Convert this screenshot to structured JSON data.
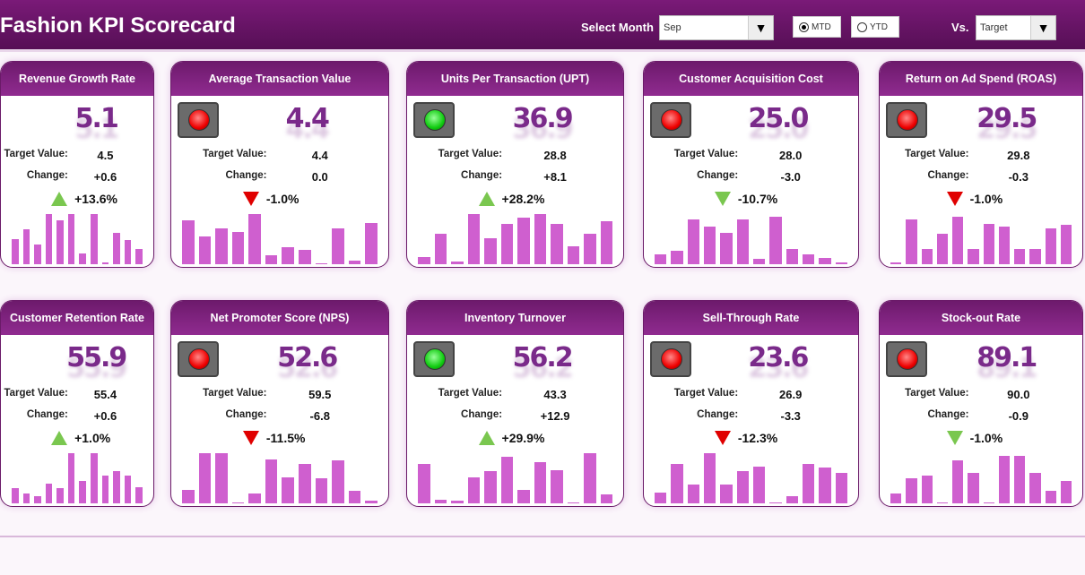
{
  "header": {
    "title": "Fashion KPI Scorecard",
    "select_month_label": "Select Month",
    "month": "Sep",
    "mtd": "MTD",
    "ytd": "YTD",
    "mode_selected": "MTD",
    "vs_label": "Vs.",
    "vs_value": "Target"
  },
  "labels": {
    "target": "Target Value:",
    "change": "Change:"
  },
  "colors": {
    "accent": "#7a1a78",
    "bar": "#cf5fcf",
    "red": "#e00000",
    "green": "#7ac74f"
  },
  "cards": [
    {
      "title": "Revenue Growth Rate",
      "value": "5.1",
      "target": "4.5",
      "change": "+0.6",
      "pct": "+13.6%",
      "dir": "up",
      "arrow": "#7ac74f",
      "light": "",
      "spark": [
        0.5,
        0.7,
        0.4,
        1.0,
        0.88,
        1.0,
        0.22,
        1.0,
        0.03,
        0.62,
        0.48,
        0.3
      ]
    },
    {
      "title": "Average Transaction Value",
      "value": "4.4",
      "target": "4.4",
      "change": "0.0",
      "pct": "-1.0%",
      "dir": "down",
      "arrow": "#e00000",
      "light": "red",
      "spark": [
        0.88,
        0.55,
        0.72,
        0.64,
        1.0,
        0.18,
        0.34,
        0.28,
        0.02,
        0.72,
        0.08,
        0.82
      ]
    },
    {
      "title": "Units Per Transaction (UPT)",
      "value": "36.9",
      "target": "28.8",
      "change": "+8.1",
      "pct": "+28.2%",
      "dir": "up",
      "arrow": "#7ac74f",
      "light": "green",
      "spark": [
        0.14,
        0.6,
        0.06,
        1.0,
        0.52,
        0.8,
        0.92,
        1.0,
        0.8,
        0.36,
        0.6,
        0.86
      ]
    },
    {
      "title": "Customer Acquisition Cost",
      "value": "25.0",
      "target": "28.0",
      "change": "-3.0",
      "pct": "-10.7%",
      "dir": "down",
      "arrow": "#7ac74f",
      "light": "red",
      "spark": [
        0.2,
        0.26,
        0.9,
        0.75,
        0.62,
        0.9,
        0.1,
        0.95,
        0.3,
        0.2,
        0.12,
        0.04
      ]
    },
    {
      "title": "Return on Ad Spend (ROAS)",
      "value": "29.5",
      "target": "29.8",
      "change": "-0.3",
      "pct": "-1.0%",
      "dir": "down",
      "arrow": "#e00000",
      "light": "red",
      "spark": [
        0.03,
        0.9,
        0.3,
        0.6,
        0.95,
        0.3,
        0.8,
        0.75,
        0.3,
        0.3,
        0.72,
        0.78
      ]
    },
    {
      "title": "Customer Retention Rate",
      "value": "55.9",
      "target": "55.4",
      "change": "+0.6",
      "pct": "+1.0%",
      "dir": "up",
      "arrow": "#7ac74f",
      "light": "",
      "spark": [
        0.3,
        0.2,
        0.15,
        0.4,
        0.3,
        1.0,
        0.45,
        1.0,
        0.55,
        0.65,
        0.55,
        0.33
      ]
    },
    {
      "title": "Net Promoter Score (NPS)",
      "value": "52.6",
      "target": "59.5",
      "change": "-6.8",
      "pct": "-11.5%",
      "dir": "down",
      "arrow": "#e00000",
      "light": "red",
      "spark": [
        0.27,
        1.0,
        1.0,
        0.02,
        0.2,
        0.88,
        0.52,
        0.78,
        0.5,
        0.85,
        0.25,
        0.06
      ]
    },
    {
      "title": "Inventory Turnover",
      "value": "56.2",
      "target": "43.3",
      "change": "+12.9",
      "pct": "+29.9%",
      "dir": "up",
      "arrow": "#7ac74f",
      "light": "green",
      "spark": [
        0.78,
        0.08,
        0.06,
        0.52,
        0.64,
        0.92,
        0.26,
        0.82,
        0.66,
        0.02,
        1.0,
        0.18
      ]
    },
    {
      "title": "Sell-Through Rate",
      "value": "23.6",
      "target": "26.9",
      "change": "-3.3",
      "pct": "-12.3%",
      "dir": "down",
      "arrow": "#e00000",
      "light": "red",
      "spark": [
        0.22,
        0.78,
        0.38,
        1.0,
        0.38,
        0.64,
        0.74,
        0.02,
        0.14,
        0.78,
        0.72,
        0.6
      ]
    },
    {
      "title": "Stock-out Rate",
      "value": "89.1",
      "target": "90.0",
      "change": "-0.9",
      "pct": "-1.0%",
      "dir": "down",
      "arrow": "#7ac74f",
      "light": "red",
      "spark": [
        0.2,
        0.5,
        0.55,
        0.02,
        0.85,
        0.6,
        0.02,
        0.95,
        0.95,
        0.6,
        0.25,
        0.45
      ]
    }
  ]
}
